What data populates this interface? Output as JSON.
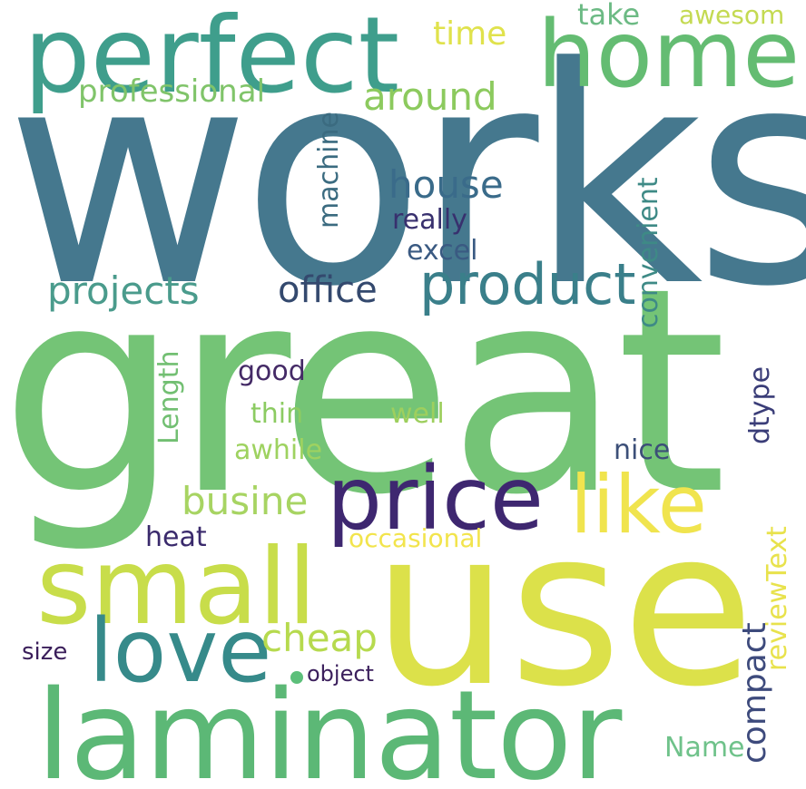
{
  "words": [
    {
      "text": "works",
      "weight": 100,
      "color": "#45788e"
    },
    {
      "text": "great",
      "weight": 98,
      "color": "#74c476"
    },
    {
      "text": "use",
      "weight": 75,
      "color": "#dce14a"
    },
    {
      "text": "laminator",
      "weight": 52,
      "color": "#5cb876"
    },
    {
      "text": "perfect",
      "weight": 40,
      "color": "#3f9e8c"
    },
    {
      "text": "home",
      "weight": 38,
      "color": "#64bc72"
    },
    {
      "text": "small",
      "weight": 36,
      "color": "#c8dd4a"
    },
    {
      "text": "price",
      "weight": 30,
      "color": "#3e2770"
    },
    {
      "text": "love",
      "weight": 30,
      "color": "#368a8a"
    },
    {
      "text": "like",
      "weight": 27,
      "color": "#f0e44e"
    },
    {
      "text": "product",
      "weight": 23,
      "color": "#3a7f8a"
    },
    {
      "text": "house",
      "weight": 15,
      "color": "#3a6b8a"
    },
    {
      "text": "around",
      "weight": 15,
      "color": "#8cca5e"
    },
    {
      "text": "projects",
      "weight": 15,
      "color": "#4a9b8c"
    },
    {
      "text": "office",
      "weight": 15,
      "color": "#34496e"
    },
    {
      "text": "compact",
      "weight": 15,
      "color": "#3d4a7c"
    },
    {
      "text": "cheap",
      "weight": 15,
      "color": "#b6da4e"
    },
    {
      "text": "busine",
      "weight": 14,
      "color": "#a7d462"
    },
    {
      "text": "professional",
      "weight": 12,
      "color": "#80c46a"
    },
    {
      "text": "time",
      "weight": 12,
      "color": "#e0e24c"
    },
    {
      "text": "take",
      "weight": 12,
      "color": "#6cba84"
    },
    {
      "text": "awesom",
      "weight": 12,
      "color": "#c4da52"
    },
    {
      "text": "machine",
      "weight": 12,
      "color": "#3b6b80"
    },
    {
      "text": "convenient",
      "weight": 12,
      "color": "#3e8a86"
    },
    {
      "text": "really",
      "weight": 12,
      "color": "#38306e"
    },
    {
      "text": "excel",
      "weight": 12,
      "color": "#3a5a82"
    },
    {
      "text": "Length",
      "weight": 12,
      "color": "#72bf72"
    },
    {
      "text": "good",
      "weight": 12,
      "color": "#442a66"
    },
    {
      "text": "thin",
      "weight": 12,
      "color": "#8ccb62"
    },
    {
      "text": "well",
      "weight": 12,
      "color": "#9ecf5e"
    },
    {
      "text": "awhile",
      "weight": 12,
      "color": "#9ed260"
    },
    {
      "text": "nice",
      "weight": 12,
      "color": "#3c4f78"
    },
    {
      "text": "dtype",
      "weight": 12,
      "color": "#3a3d78"
    },
    {
      "text": "heat",
      "weight": 12,
      "color": "#3a2a6c"
    },
    {
      "text": "occasional",
      "weight": 12,
      "color": "#f2e44c"
    },
    {
      "text": "reviewText",
      "weight": 12,
      "color": "#e8e24c"
    },
    {
      "text": "size",
      "weight": 12,
      "color": "#3a1e5a"
    },
    {
      "text": "object",
      "weight": 10,
      "color": "#3b1f5c"
    },
    {
      "text": "Name",
      "weight": 12,
      "color": "#6fc28a"
    }
  ],
  "dot_color": "#5cbf7a"
}
